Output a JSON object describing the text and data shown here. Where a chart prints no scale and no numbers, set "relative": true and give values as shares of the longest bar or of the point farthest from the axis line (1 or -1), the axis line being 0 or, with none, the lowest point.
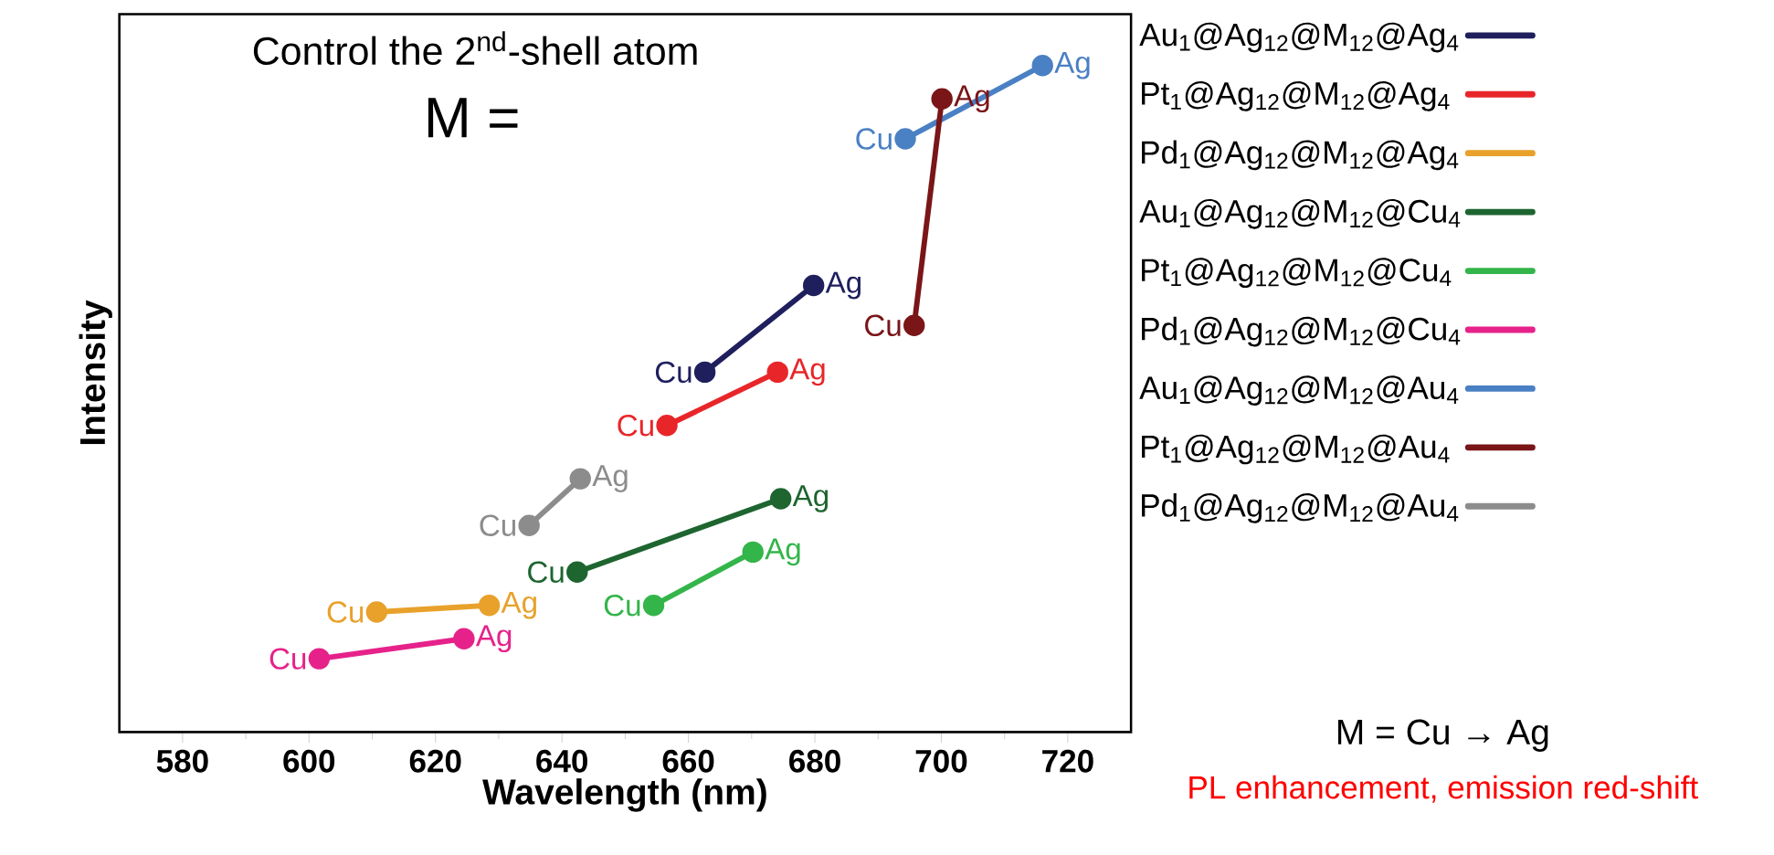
{
  "chart_data": {
    "type": "line",
    "title": "Control the 2$^{nd}$-shell atom",
    "subtitle": "M =",
    "xlabel": "Wavelength (nm)",
    "ylabel": "Intensity",
    "relative": true,
    "xlim": [
      570,
      730
    ],
    "xticks": [
      580,
      600,
      620,
      640,
      660,
      680,
      700,
      720
    ],
    "marker": "circle",
    "line_style": "solid",
    "legend": "right",
    "grid": false,
    "series": [
      {
        "name": "Au$_{1}$@Ag$_{12}$@M$_{12}$@Ag$_{4}$",
        "color": "#1f1f5e",
        "x": [
          662.6,
          679.8
        ],
        "values": [
          0.54,
          0.67
        ]
      },
      {
        "name": "Pt$_{1}$@Ag$_{12}$@M$_{12}$@Ag$_{4}$",
        "color": "#e8262a",
        "x": [
          656.6,
          674.1
        ],
        "values": [
          0.46,
          0.54
        ]
      },
      {
        "name": "Pd$_{1}$@Ag$_{12}$@M$_{12}$@Ag$_{4}$",
        "color": "#e8a12a",
        "x": [
          610.7,
          628.5
        ],
        "values": [
          0.18,
          0.19
        ]
      },
      {
        "name": "Au$_{1}$@Ag$_{12}$@M$_{12}$@Cu$_{4}$",
        "color": "#1e6530",
        "x": [
          642.4,
          674.6
        ],
        "values": [
          0.24,
          0.35
        ]
      },
      {
        "name": "Pt$_{1}$@Ag$_{12}$@M$_{12}$@Cu$_{4}$",
        "color": "#33b54a",
        "x": [
          654.5,
          670.2
        ],
        "values": [
          0.19,
          0.27
        ]
      },
      {
        "name": "Pd$_{1}$@Ag$_{12}$@M$_{12}$@Cu$_{4}$",
        "color": "#e6228a",
        "x": [
          601.6,
          624.5
        ],
        "values": [
          0.11,
          0.14
        ]
      },
      {
        "name": "Au$_{1}$@Ag$_{12}$@M$_{12}$@Au$_{4}$",
        "color": "#4a80c4",
        "x": [
          694.3,
          716.0
        ],
        "values": [
          0.89,
          1.0
        ]
      },
      {
        "name": "Pt$_{1}$@Ag$_{12}$@M$_{12}$@Au$_{4}$",
        "color": "#7a1518",
        "x": [
          695.7,
          700.1
        ],
        "values": [
          0.61,
          0.95
        ]
      },
      {
        "name": "Pd$_{1}$@Ag$_{12}$@M$_{12}$@Au$_{4}$",
        "color": "#8c8c8c",
        "x": [
          634.8,
          642.9
        ],
        "values": [
          0.31,
          0.38
        ]
      }
    ],
    "annotations": [
      {
        "text": "Cu",
        "x": 662.6,
        "y": 0.54
      },
      {
        "text": "Ag",
        "x": 679.8,
        "y": 0.67
      },
      {
        "text": "Cu",
        "x": 656.6,
        "y": 0.46
      },
      {
        "text": "Ag",
        "x": 674.1,
        "y": 0.54
      },
      {
        "text": "Cu",
        "x": 610.7,
        "y": 0.18
      },
      {
        "text": "Ag",
        "x": 628.5,
        "y": 0.19
      },
      {
        "text": "Cu",
        "x": 642.4,
        "y": 0.24
      },
      {
        "text": "Ag",
        "x": 674.6,
        "y": 0.35
      },
      {
        "text": "Cu",
        "x": 654.5,
        "y": 0.19
      },
      {
        "text": "Ag",
        "x": 670.2,
        "y": 0.27
      },
      {
        "text": "Cu",
        "x": 601.6,
        "y": 0.11
      },
      {
        "text": "Ag",
        "x": 624.5,
        "y": 0.14
      },
      {
        "text": "Cu",
        "x": 694.3,
        "y": 0.89
      },
      {
        "text": "Ag",
        "x": 716.0,
        "y": 1.0
      },
      {
        "text": "Cu",
        "x": 695.7,
        "y": 0.61
      },
      {
        "text": "Ag",
        "x": 700.1,
        "y": 0.95
      },
      {
        "text": "Cu",
        "x": 634.8,
        "y": 0.31
      },
      {
        "text": "Ag",
        "x": 642.9,
        "y": 0.38
      },
      "M = Cu → Ag",
      "PL enhancement, emission red-shift"
    ]
  }
}
